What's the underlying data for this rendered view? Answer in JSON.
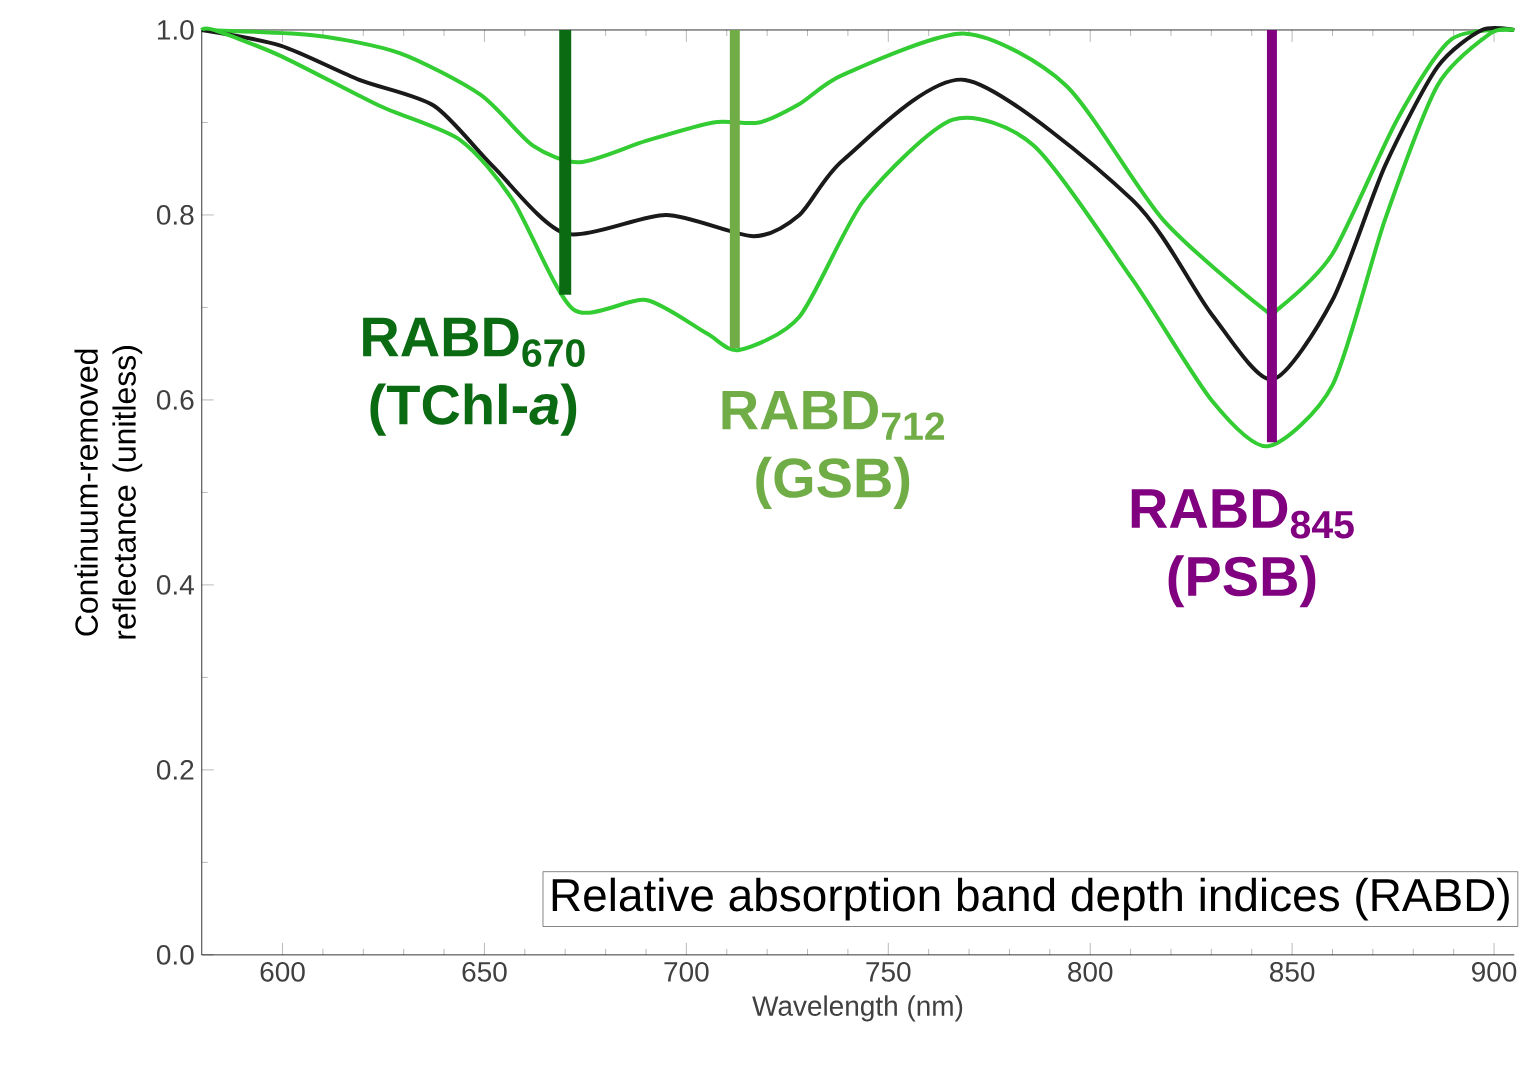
{
  "chart_data": {
    "type": "line",
    "xlabel": "Wavelength (nm)",
    "ylabel": "Continuum-removed reflectance (unitless)",
    "xlim": [
      580,
      905
    ],
    "ylim": [
      0,
      1
    ],
    "xticks": [
      600,
      650,
      700,
      750,
      800,
      850,
      900
    ],
    "yticks": [
      {
        "value": 0,
        "label": "0.0"
      },
      {
        "value": 0.2,
        "label": "0.2"
      },
      {
        "value": 0.4,
        "label": "0.4"
      },
      {
        "value": 0.6,
        "label": "0.6"
      },
      {
        "value": 0.8,
        "label": "0.8"
      },
      {
        "value": 1,
        "label": "1.0"
      }
    ],
    "grid": false,
    "marker": "none",
    "line_style": "solid",
    "series": [
      {
        "color": "#33cc33",
        "x": [
          580,
          608,
          629,
          649,
          662,
          673.6,
          690,
          706.7,
          718,
          728,
          739,
          769,
          794,
          818,
          843,
          846.5,
          860,
          876,
          889.5,
          905
        ],
        "values": [
          1.0,
          0.994,
          0.975,
          0.93,
          0.875,
          0.857,
          0.88,
          0.9,
          0.9,
          0.92,
          0.952,
          0.996,
          0.94,
          0.795,
          0.698,
          0.698,
          0.758,
          0.903,
          0.99,
          1.0
        ]
      },
      {
        "color": "#1a1a1a",
        "x": [
          580,
          599.5,
          619,
          637.5,
          652,
          670,
          695,
          716.6,
          728,
          739,
          769,
          810.5,
          830,
          845,
          860,
          873,
          886,
          897,
          905
        ],
        "values": [
          1.0,
          0.983,
          0.946,
          0.918,
          0.853,
          0.78,
          0.8,
          0.777,
          0.8,
          0.86,
          0.946,
          0.816,
          0.693,
          0.622,
          0.708,
          0.853,
          0.96,
          1.0,
          1.0
        ]
      },
      {
        "color": "#33cc33",
        "x": [
          580,
          583,
          599.5,
          624,
          644,
          657,
          672,
          690,
          705,
          713,
          728,
          744,
          766,
          786,
          810.5,
          830,
          844,
          860,
          873,
          886,
          899,
          905
        ],
        "values": [
          1.0,
          1.0,
          0.972,
          0.918,
          0.881,
          0.816,
          0.698,
          0.708,
          0.672,
          0.654,
          0.69,
          0.816,
          0.903,
          0.875,
          0.73,
          0.6,
          0.55,
          0.616,
          0.795,
          0.94,
          0.996,
          1.0
        ]
      }
    ],
    "ref_lines": [
      {
        "axis": "x",
        "value": 670,
        "label": "**RABD$_{670}$ (TChl-*a*)**",
        "color": "#0b6b12"
      },
      {
        "axis": "x",
        "value": 712,
        "label": "**RABD$_{712}$ (GSB)**",
        "color": "#70ad47"
      },
      {
        "axis": "x",
        "value": 845,
        "label": "**RABD$_{845}$ (PSB)**",
        "color": "#800080"
      }
    ],
    "annotations": [
      "Relative absorption band depth indices (RABD)"
    ]
  }
}
